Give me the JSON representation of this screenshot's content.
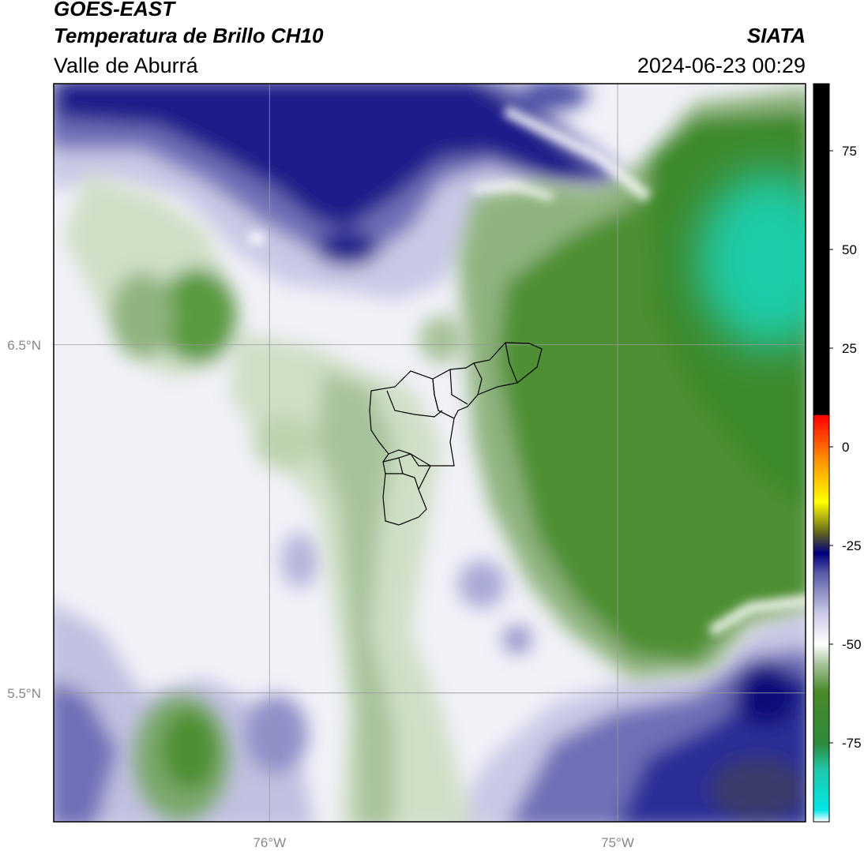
{
  "header": {
    "satellite": "GOES-EAST",
    "product": "Temperatura de Brillo CH10",
    "region": "Valle de Aburrá",
    "agency": "SIATA",
    "datetime": "2024-06-23 00:29"
  },
  "map": {
    "lat_ticks": [
      {
        "label": "6.5°N",
        "lat": 6.5
      },
      {
        "label": "5.5°N",
        "lat": 5.5
      }
    ],
    "lon_ticks": [
      {
        "label": "76°W",
        "lon": -76.0
      },
      {
        "label": "75°W",
        "lon": -75.0
      }
    ],
    "extent": {
      "lon_min": -76.62,
      "lon_max": -74.46,
      "lat_min": 5.13,
      "lat_max": 7.25
    },
    "gridlines": true
  },
  "colorbar": {
    "ticks": [
      "75",
      "50",
      "25",
      "0",
      "-25",
      "-50",
      "-75"
    ],
    "tick_values": [
      75,
      50,
      25,
      0,
      -25,
      -50,
      -75
    ],
    "range": [
      -95,
      92
    ],
    "stops": [
      {
        "v": -95,
        "c": "#ffffff"
      },
      {
        "v": -92,
        "c": "#00e6e6"
      },
      {
        "v": -82,
        "c": "#1ec8aa"
      },
      {
        "v": -75,
        "c": "#2e8b3c"
      },
      {
        "v": -62,
        "c": "#4a8a2a"
      },
      {
        "v": -55,
        "c": "#a7c39b"
      },
      {
        "v": -50,
        "c": "#ffffff"
      },
      {
        "v": -42,
        "c": "#c8c8e6"
      },
      {
        "v": -32,
        "c": "#5a5aa8"
      },
      {
        "v": -27,
        "c": "#000080"
      },
      {
        "v": -22,
        "c": "#606020"
      },
      {
        "v": -14,
        "c": "#ffff00"
      },
      {
        "v": -4,
        "c": "#ff9900"
      },
      {
        "v": 8,
        "c": "#ff0000"
      },
      {
        "v": 8.1,
        "c": "#000000"
      },
      {
        "v": 92,
        "c": "#000000"
      }
    ]
  },
  "colors": {
    "deep_blue": "#0a0f7a",
    "blue": "#4a4fa6",
    "lavender": "#c9c9e6",
    "pale": "#eeeef6",
    "pale_green": "#cfdfc6",
    "green": "#8fb37e",
    "dark_green": "#3e8a2c",
    "teal": "#1ecca8",
    "frame": "#000000",
    "grid": "#999999"
  }
}
